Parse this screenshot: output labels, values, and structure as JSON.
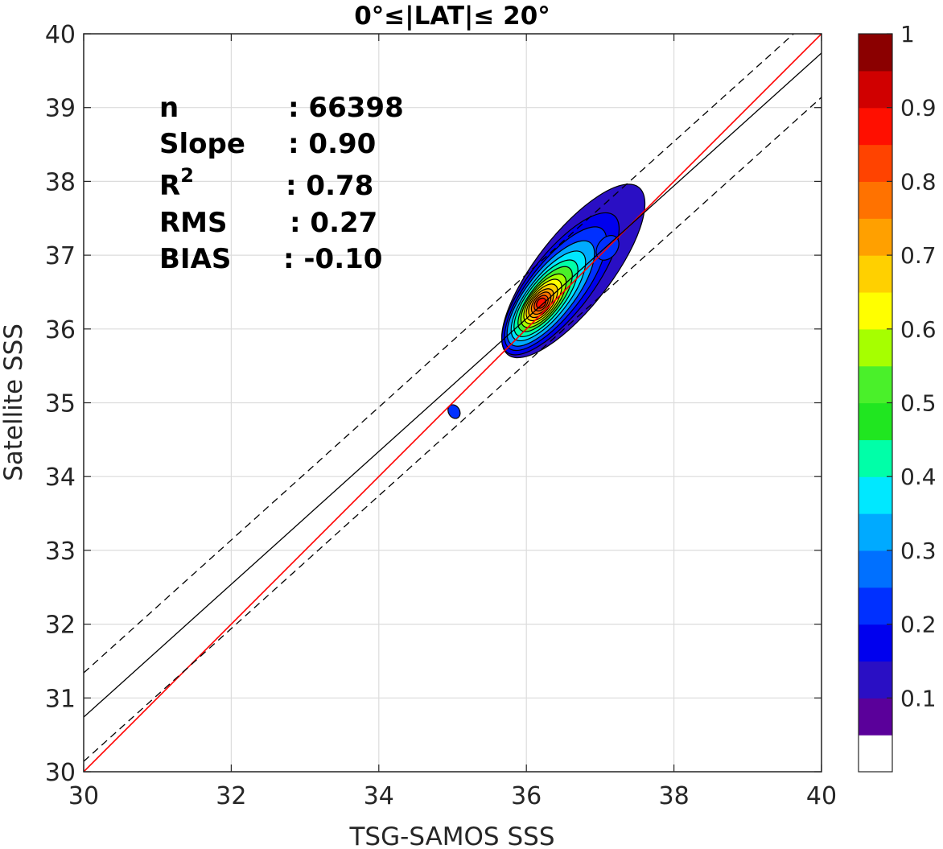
{
  "chart_data": {
    "type": "contour",
    "title": "0°≤|LAT|≤ 20°",
    "xlabel": "TSG-SAMOS SSS",
    "ylabel": "Satellite SSS",
    "xlim": [
      30,
      40
    ],
    "ylim": [
      30,
      40
    ],
    "xticks": [
      "30",
      "32",
      "34",
      "36",
      "38",
      "40"
    ],
    "yticks": [
      "30",
      "31",
      "32",
      "33",
      "34",
      "35",
      "36",
      "37",
      "38",
      "39",
      "40"
    ],
    "grid": true,
    "stats": {
      "n": {
        "label": "n",
        "value": ": 66398"
      },
      "slope": {
        "label": "Slope",
        "value": ": 0.90"
      },
      "r2": {
        "label": "R",
        "sup": "2",
        "value": ": 0.78"
      },
      "rms": {
        "label": "RMS",
        "value": ": 0.27"
      },
      "bias": {
        "label": "BIAS",
        "value": ": -0.10"
      }
    },
    "lines": {
      "identity": {
        "color": "#ff0000",
        "points": [
          [
            30,
            30
          ],
          [
            40,
            40
          ]
        ]
      },
      "fit": {
        "color": "#000000",
        "slope": 0.9,
        "intercept": 3.74
      },
      "fit_upper": {
        "color": "#000000",
        "dash": true,
        "slope": 0.9,
        "intercept": 4.34
      },
      "fit_lower": {
        "color": "#000000",
        "dash": true,
        "slope": 0.9,
        "intercept": 3.14
      }
    },
    "density": {
      "main_peak": {
        "x": 36.2,
        "y": 36.35,
        "value": 1.0
      },
      "secondary_peak": {
        "x": 37.1,
        "y": 37.1,
        "value": 0.2
      },
      "outlier": {
        "x": 35.02,
        "y": 34.88,
        "value": 0.1
      }
    },
    "colorbar": {
      "ticks": [
        "1",
        "0.9",
        "0.8",
        "0.7",
        "0.6",
        "0.5",
        "0.4",
        "0.3",
        "0.2",
        "0.1"
      ],
      "colors": [
        "#ffffff",
        "#5a009a",
        "#2a0fc4",
        "#0000ee",
        "#0030ff",
        "#0070ff",
        "#00aaff",
        "#00e8ff",
        "#00ffa8",
        "#20e620",
        "#4af02a",
        "#a6ff00",
        "#ffff00",
        "#ffd000",
        "#ffa000",
        "#ff7200",
        "#ff4300",
        "#ff0f00",
        "#d00000",
        "#8b0000"
      ]
    }
  }
}
